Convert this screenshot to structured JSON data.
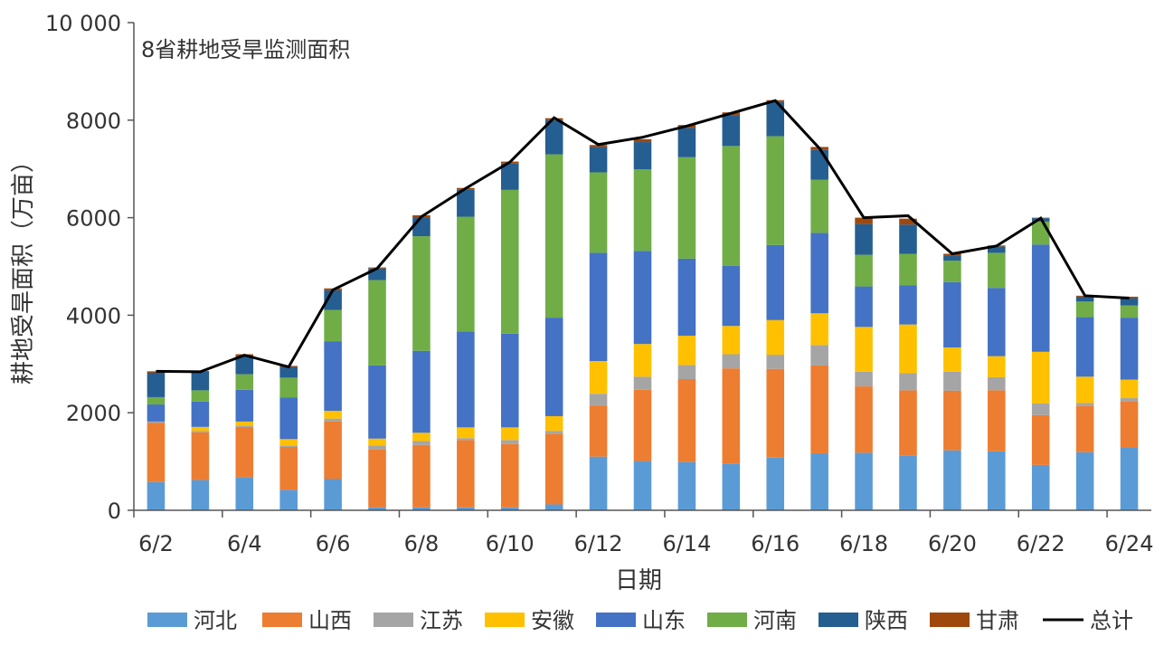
{
  "chart_data": {
    "type": "bar",
    "stacked": true,
    "title": "8省耕地受旱监测面积",
    "xlabel": "日期",
    "ylabel": "耕地受旱面积（万亩）",
    "ylim": [
      0,
      10000
    ],
    "yticks": [
      0,
      2000,
      4000,
      6000,
      8000,
      10000
    ],
    "ytick_labels": [
      "0",
      "2000",
      "4000",
      "6000",
      "8000",
      "10 000"
    ],
    "grid": false,
    "legend_position": "bottom",
    "categories": [
      "6/2",
      "6/3",
      "6/4",
      "6/5",
      "6/6",
      "6/7",
      "6/8",
      "6/9",
      "6/10",
      "6/11",
      "6/12",
      "6/13",
      "6/14",
      "6/15",
      "6/16",
      "6/17",
      "6/18",
      "6/19",
      "6/20",
      "6/21",
      "6/22",
      "6/23",
      "6/24"
    ],
    "xtick_labels": [
      "6/2",
      "",
      "6/4",
      "",
      "6/6",
      "",
      "6/8",
      "",
      "6/10",
      "",
      "6/12",
      "",
      "6/14",
      "",
      "6/16",
      "",
      "6/18",
      "",
      "6/20",
      "",
      "6/22",
      "",
      "6/24"
    ],
    "series": [
      {
        "name": "河北",
        "color": "#5B9BD5",
        "values": [
          580,
          620,
          680,
          420,
          640,
          60,
          60,
          60,
          60,
          120,
          1100,
          1010,
          990,
          960,
          1080,
          1170,
          1180,
          1120,
          1230,
          1210,
          930,
          1190,
          1280
        ]
      },
      {
        "name": "山西",
        "color": "#ED7D31",
        "values": [
          1210,
          980,
          1030,
          880,
          1180,
          1190,
          1280,
          1380,
          1300,
          1450,
          1050,
          1460,
          1700,
          1950,
          1820,
          1800,
          1360,
          1340,
          1220,
          1250,
          1020,
          950,
          960
        ]
      },
      {
        "name": "江苏",
        "color": "#A5A5A5",
        "values": [
          30,
          30,
          30,
          30,
          60,
          80,
          80,
          40,
          80,
          60,
          240,
          270,
          290,
          290,
          290,
          420,
          300,
          350,
          390,
          270,
          240,
          60,
          60
        ]
      },
      {
        "name": "安徽",
        "color": "#FFC000",
        "values": [
          0,
          80,
          80,
          130,
          160,
          140,
          170,
          220,
          260,
          300,
          670,
          670,
          600,
          580,
          710,
          650,
          920,
          1000,
          500,
          430,
          1060,
          540,
          380
        ]
      },
      {
        "name": "山东",
        "color": "#4472C4",
        "values": [
          350,
          520,
          650,
          850,
          1420,
          1500,
          1680,
          1970,
          1920,
          2020,
          2220,
          1910,
          1580,
          1230,
          1540,
          1650,
          830,
          800,
          1340,
          1400,
          2200,
          1220,
          1270
        ]
      },
      {
        "name": "河南",
        "color": "#70AD47",
        "values": [
          150,
          230,
          320,
          410,
          650,
          1750,
          2350,
          2350,
          2950,
          3350,
          1650,
          1670,
          2080,
          2460,
          2230,
          1090,
          650,
          650,
          440,
          720,
          470,
          320,
          250
        ]
      },
      {
        "name": "陕西",
        "color": "#255E91",
        "values": [
          500,
          380,
          370,
          220,
          400,
          240,
          390,
          560,
          540,
          700,
          520,
          560,
          600,
          630,
          700,
          610,
          630,
          600,
          110,
          130,
          70,
          100,
          150
        ]
      },
      {
        "name": "甘肃",
        "color": "#9E480E",
        "values": [
          30,
          20,
          40,
          20,
          40,
          20,
          40,
          30,
          40,
          40,
          40,
          60,
          60,
          60,
          40,
          60,
          130,
          120,
          30,
          20,
          10,
          20,
          30
        ]
      }
    ],
    "total": {
      "name": "总计",
      "color": "#000000",
      "values": [
        2850,
        2840,
        3180,
        2940,
        4520,
        4960,
        6020,
        6600,
        7140,
        8050,
        7500,
        7650,
        7880,
        8140,
        8400,
        7420,
        6000,
        6040,
        5260,
        5420,
        5990,
        4400,
        4350
      ]
    }
  }
}
